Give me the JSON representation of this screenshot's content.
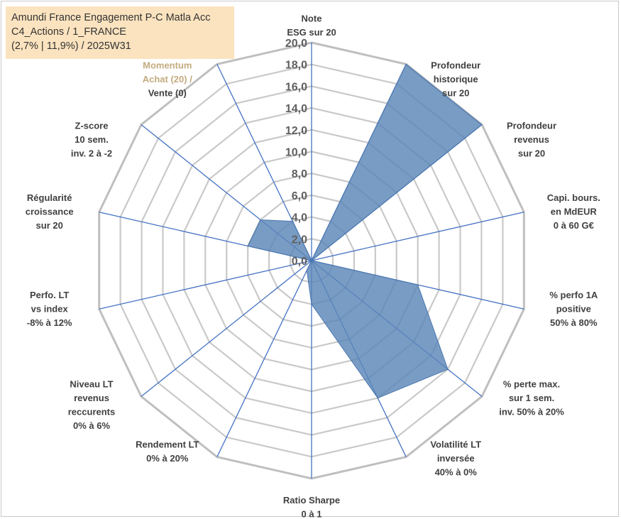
{
  "title": {
    "line1": "Amundi France Engagement P-C Matla Acc",
    "line2": "C4_Actions / 1_FRANCE",
    "line3": "(2,7% | 11,9%) / 2025W31"
  },
  "colors": {
    "fill": "#5b86b8",
    "stroke": "#4a77ad",
    "spoke": "#4472c4",
    "grid": "#c9c9c9",
    "grid_outer": "#bfbfbf",
    "title_bg": "#fbe3bf"
  },
  "chart_data": {
    "type": "radar",
    "rmin": 0,
    "rmax": 20,
    "tick_step": 2,
    "tick_labels": [
      "0,0",
      "2,0",
      "4,0",
      "6,0",
      "8,0",
      "10,0",
      "12,0",
      "14,0",
      "16,0",
      "18,0",
      "20,0"
    ],
    "axes": [
      {
        "label": [
          "Note",
          "ESG sur 20"
        ],
        "value": 0
      },
      {
        "label": [
          "Profondeur",
          "historique",
          "sur 20"
        ],
        "value": 20
      },
      {
        "label": [
          "Profondeur",
          "revenus",
          "sur 20"
        ],
        "value": 20
      },
      {
        "label": [
          "Capi. bours.",
          "en MdEUR",
          "0 à 60 G€"
        ],
        "value": 0
      },
      {
        "label": [
          "% perfo 1A",
          "positive",
          "50% à 80%"
        ],
        "value": 10
      },
      {
        "label": [
          "% perte max.",
          "sur 1 sem.",
          "inv. 50% à 20%"
        ],
        "value": 16
      },
      {
        "label": [
          "Volatilité LT",
          "inversée",
          "40% à 0%"
        ],
        "value": 14
      },
      {
        "label": [
          "Ratio Sharpe",
          "0 à 1"
        ],
        "value": 4
      },
      {
        "label": [
          "Rendement LT",
          "0% à 20%"
        ],
        "value": 1
      },
      {
        "label": [
          "Niveau LT",
          "revenus",
          "reccurents",
          "0% à 6%"
        ],
        "value": 0
      },
      {
        "label": [
          "Perfo. LT",
          "vs index",
          "-8% à 12%"
        ],
        "value": 0
      },
      {
        "label": [
          "Régularité",
          "croissance",
          "sur 20"
        ],
        "value": 6
      },
      {
        "label": [
          "Z-score",
          "10 sem.",
          "inv. 2 à -2"
        ],
        "value": 6
      },
      {
        "label": [
          "Momentum",
          "Achat (20) /",
          "Vente (0)"
        ],
        "value": 4
      }
    ]
  }
}
